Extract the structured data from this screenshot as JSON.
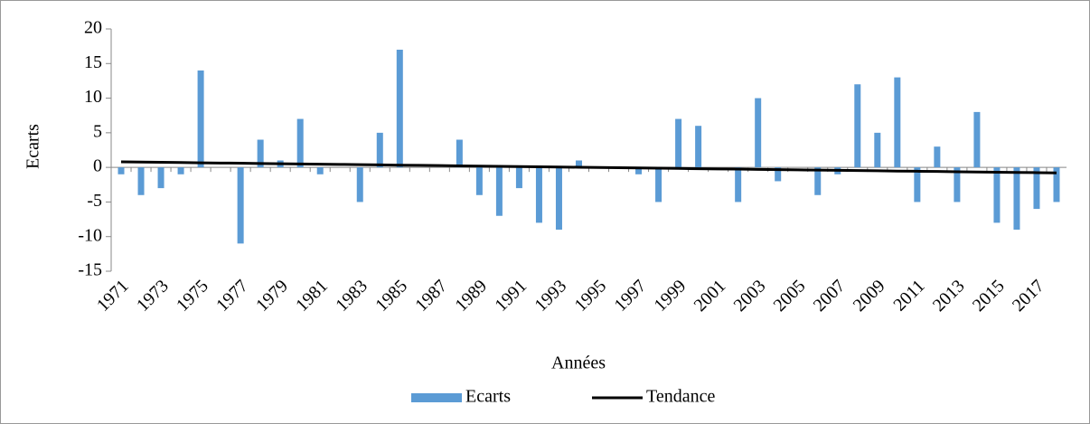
{
  "chart_data": {
    "type": "bar",
    "x_label": "Années",
    "y_label": "Ecarts",
    "categories": [
      "1971",
      null,
      "1973",
      null,
      "1975",
      null,
      "1977",
      null,
      "1979",
      null,
      "1981",
      null,
      "1983",
      null,
      "1985",
      null,
      "1987",
      null,
      "1989",
      null,
      "1991",
      null,
      "1993",
      null,
      "1995",
      null,
      "1997",
      null,
      "1999",
      null,
      "2001",
      null,
      "2003",
      null,
      "2005",
      null,
      "2007",
      null,
      "2009",
      null,
      "2011",
      null,
      "2013",
      null,
      "2015",
      null,
      "2017",
      null
    ],
    "series": [
      {
        "name": "Ecarts",
        "type": "bar",
        "color": "#5b9bd5",
        "values": [
          -1,
          -4,
          -3,
          -1,
          14,
          0,
          -11,
          4,
          1,
          7,
          -1,
          0,
          -5,
          5,
          17,
          0,
          0,
          4,
          -4,
          -7,
          -3,
          -8,
          -9,
          1,
          0,
          0,
          -1,
          -5,
          7,
          6,
          0,
          -5,
          10,
          -2,
          0,
          -4,
          -1,
          12,
          5,
          13,
          -5,
          3,
          -5,
          8,
          -8,
          -9,
          -6,
          -5
        ]
      },
      {
        "name": "Tendance",
        "type": "line",
        "color": "#000000",
        "values": [
          0.8,
          0.77,
          0.73,
          0.7,
          0.66,
          0.63,
          0.6,
          0.56,
          0.53,
          0.49,
          0.46,
          0.43,
          0.39,
          0.36,
          0.32,
          0.29,
          0.26,
          0.22,
          0.19,
          0.15,
          0.12,
          0.09,
          0.05,
          0.02,
          -0.02,
          -0.05,
          -0.08,
          -0.12,
          -0.15,
          -0.19,
          -0.22,
          -0.25,
          -0.29,
          -0.32,
          -0.36,
          -0.39,
          -0.42,
          -0.46,
          -0.49,
          -0.53,
          -0.56,
          -0.59,
          -0.63,
          -0.66,
          -0.7,
          -0.73,
          -0.76,
          -0.8
        ]
      }
    ],
    "ylim": [
      -15,
      20
    ],
    "yticks": [
      -15,
      -10,
      -5,
      0,
      5,
      10,
      15,
      20
    ],
    "grid": false,
    "legend": "bottom"
  }
}
